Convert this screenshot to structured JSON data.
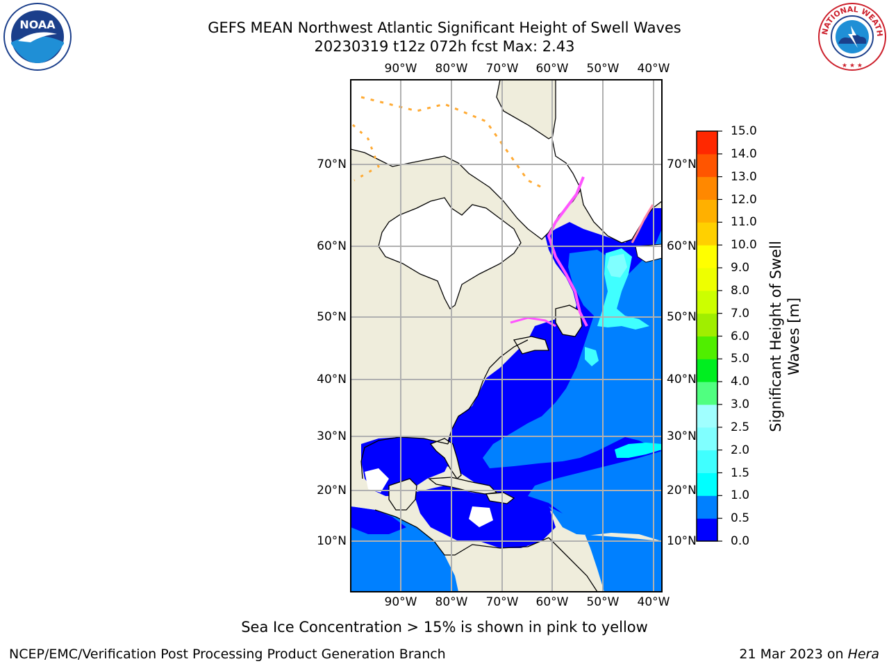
{
  "title_line1": "GEFS MEAN Northwest Atlantic Significant Height of Swell Waves",
  "title_line2": "20230319 t12z 072h fcst   Max: 2.43",
  "logos": {
    "noaa_text": "NOAA",
    "nws_text": "NATIONAL WEATHER SERVICE"
  },
  "map": {
    "lon_ticks": [
      "90°W",
      "80°W",
      "70°W",
      "60°W",
      "50°W",
      "40°W"
    ],
    "lat_ticks": [
      "70°N",
      "60°N",
      "50°N",
      "40°N",
      "30°N",
      "20°N",
      "10°N"
    ],
    "colors": {
      "land": "#efeddc",
      "ocean_low": "#0000ff",
      "ocean_mid": "#0080ff",
      "ocean_high": "#00ffff",
      "ocean_peak": "#80ffff",
      "ice_white": "#ffffff",
      "ice_pink": "#ff55ff",
      "ice_orange": "#ffaa33"
    }
  },
  "colorbar": {
    "axis_label_line1": "Significant Height of Swell",
    "axis_label_line2": "Waves [m]",
    "tick_labels": [
      "0.0",
      "0.5",
      "1.0",
      "1.5",
      "2.0",
      "2.5",
      "3.0",
      "4.0",
      "5.0",
      "6.0",
      "7.0",
      "8.0",
      "9.0",
      "10.0",
      "11.0",
      "12.0",
      "13.0",
      "14.0",
      "15.0"
    ],
    "colors": [
      "#0000ff",
      "#0080ff",
      "#00ffff",
      "#40ffff",
      "#80ffff",
      "#a0ffff",
      "#50ff80",
      "#00ee20",
      "#50ee00",
      "#a0ee00",
      "#ccff00",
      "#eeff00",
      "#ffff00",
      "#ffd000",
      "#ffb000",
      "#ff8800",
      "#ff5500",
      "#ff2800"
    ]
  },
  "notes": {
    "sea_ice": "Sea Ice Concentration > 15% is shown in pink to yellow"
  },
  "footer": {
    "left": "NCEP/EMC/Verification Post Processing Product Generation Branch",
    "right_date": "21 Mar 2023 on ",
    "right_host": "Hera"
  }
}
